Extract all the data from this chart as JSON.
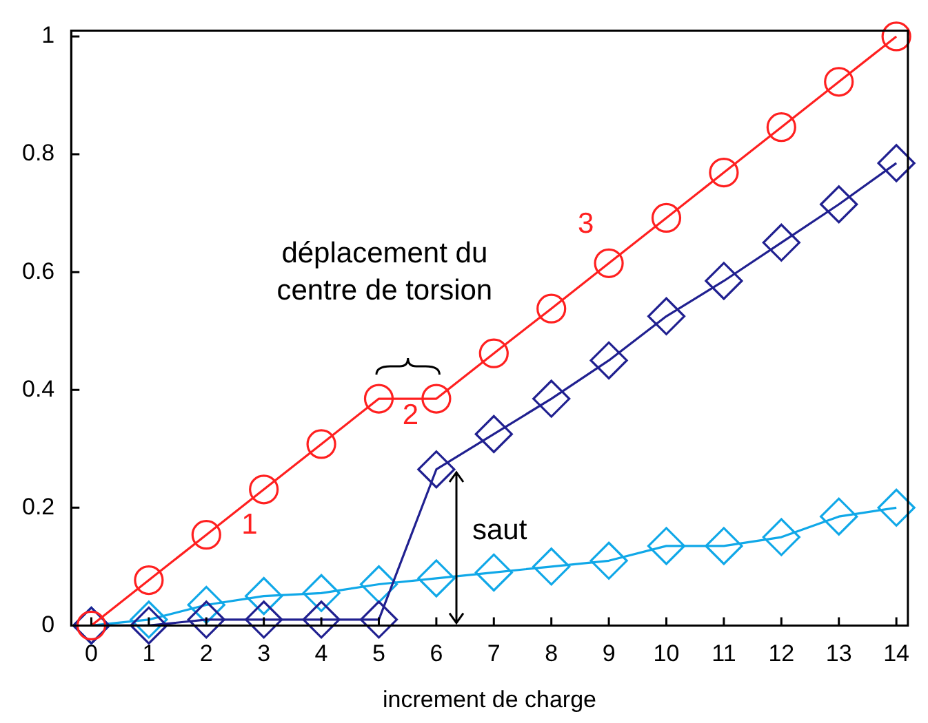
{
  "chart_data": {
    "type": "line",
    "xlabel": "increment de charge",
    "x": [
      0,
      1,
      2,
      3,
      4,
      5,
      6,
      7,
      8,
      9,
      10,
      11,
      12,
      13,
      14
    ],
    "series": [
      {
        "color": "#ff2020",
        "marker": "circle",
        "values": [
          0,
          0.077,
          0.154,
          0.231,
          0.308,
          0.385,
          0.385,
          0.462,
          0.538,
          0.615,
          0.692,
          0.769,
          0.846,
          0.923,
          1
        ]
      },
      {
        "color": "#202090",
        "marker": "diamond",
        "values": [
          0,
          0,
          0.01,
          0.01,
          0.01,
          0.01,
          0.265,
          0.325,
          0.385,
          0.45,
          0.525,
          0.585,
          0.65,
          0.715,
          0.785
        ]
      },
      {
        "color": "#10a8e8",
        "marker": "diamond",
        "values": [
          0,
          0.01,
          0.035,
          0.05,
          0.055,
          0.07,
          0.08,
          0.09,
          0.1,
          0.11,
          0.135,
          0.135,
          0.15,
          0.185,
          0.2
        ]
      }
    ],
    "xlim": [
      -0.35,
      14.2
    ],
    "xticks": [
      0,
      1,
      2,
      3,
      4,
      5,
      6,
      7,
      8,
      9,
      10,
      11,
      12,
      13,
      14
    ],
    "ylim": [
      0,
      1.01
    ],
    "yticks": [
      0,
      0.2,
      0.4,
      0.6,
      0.8,
      1
    ],
    "annotations": [
      "1",
      "2",
      "3",
      "déplacement du\ncentre de torsion",
      "saut"
    ],
    "grid": false,
    "legend": false,
    "line_style": "solid"
  }
}
